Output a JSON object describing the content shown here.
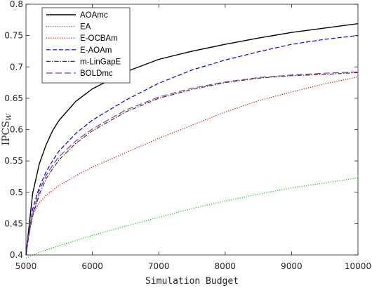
{
  "chart_data": {
    "type": "line",
    "xlabel": "Simulation Budget",
    "ylabel_main": "IPCS",
    "ylabel_sub": "W",
    "xlim": [
      5000,
      10000
    ],
    "ylim": [
      0.4,
      0.8
    ],
    "xticks": [
      "5000",
      "6000",
      "7000",
      "8000",
      "9000",
      "10000"
    ],
    "yticks": [
      "0.4",
      "0.45",
      "0.5",
      "0.55",
      "0.6",
      "0.65",
      "0.7",
      "0.75",
      "0.8"
    ],
    "grid": false,
    "legend_position": "top-left",
    "x": [
      5000,
      5100,
      5200,
      5300,
      5400,
      5500,
      5750,
      6000,
      6500,
      7000,
      7500,
      8000,
      8500,
      9000,
      9500,
      10000
    ],
    "series": [
      {
        "name": "AOAmc",
        "color": "#000000",
        "dash": "solid",
        "values": [
          0.4,
          0.498,
          0.545,
          0.575,
          0.598,
          0.615,
          0.645,
          0.665,
          0.692,
          0.712,
          0.725,
          0.736,
          0.746,
          0.755,
          0.762,
          0.769
        ]
      },
      {
        "name": "EA",
        "color": "#00cc00",
        "dash": "dotted",
        "values": [
          0.395,
          0.4,
          0.404,
          0.408,
          0.411,
          0.415,
          0.423,
          0.431,
          0.446,
          0.46,
          0.474,
          0.486,
          0.497,
          0.507,
          0.515,
          0.523
        ]
      },
      {
        "name": "E-OCBAm",
        "color": "#e00000",
        "dash": "dotted",
        "values": [
          0.405,
          0.465,
          0.483,
          0.495,
          0.503,
          0.511,
          0.526,
          0.54,
          0.563,
          0.586,
          0.607,
          0.628,
          0.646,
          0.66,
          0.673,
          0.684
        ]
      },
      {
        "name": "E-AOAm",
        "color": "#0000ee",
        "dash": "dashed",
        "values": [
          0.4,
          0.473,
          0.508,
          0.532,
          0.55,
          0.566,
          0.594,
          0.615,
          0.647,
          0.674,
          0.695,
          0.711,
          0.724,
          0.736,
          0.744,
          0.75
        ]
      },
      {
        "name": "m-LinGapE",
        "color": "#5a2a2a",
        "dash": "dashdot",
        "values": [
          0.41,
          0.462,
          0.496,
          0.521,
          0.537,
          0.552,
          0.578,
          0.598,
          0.628,
          0.65,
          0.664,
          0.675,
          0.682,
          0.686,
          0.688,
          0.691
        ]
      },
      {
        "name": "BOLDmc",
        "color": "#7b3fa0",
        "dash": "longdash",
        "values": [
          0.41,
          0.466,
          0.502,
          0.526,
          0.543,
          0.557,
          0.582,
          0.601,
          0.631,
          0.652,
          0.666,
          0.676,
          0.683,
          0.687,
          0.69,
          0.692
        ]
      }
    ]
  }
}
